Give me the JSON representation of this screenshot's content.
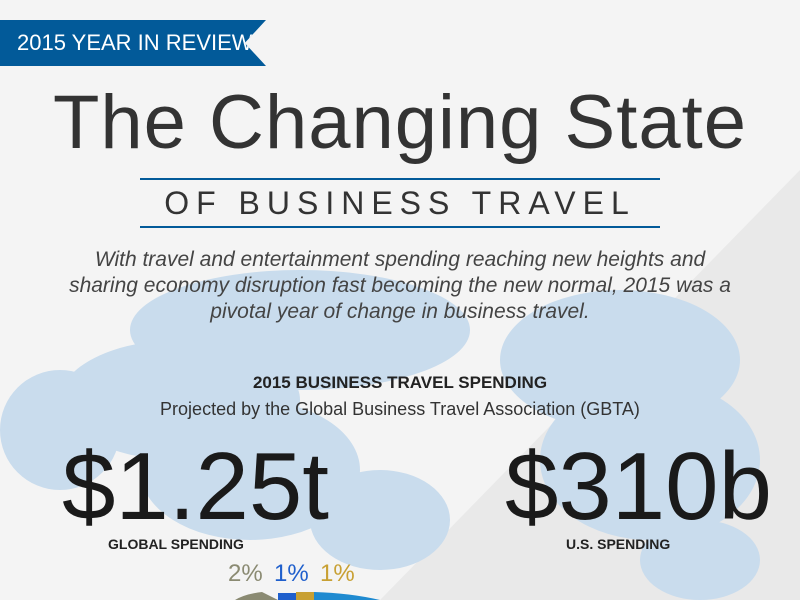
{
  "banner": "2015 YEAR IN REVIEW",
  "title": "The Changing State",
  "subtitle": "OF BUSINESS TRAVEL",
  "intro": "With travel and entertainment spending reaching new heights and sharing economy disruption fast becoming the new normal, 2015 was a pivotal year of change in business travel.",
  "section": {
    "heading": "2015 BUSINESS TRAVEL SPENDING",
    "source": "Projected by the Global Business Travel Association (GBTA)"
  },
  "stats": [
    {
      "value": "$1.25t",
      "label": "GLOBAL SPENDING"
    },
    {
      "value": "$310b",
      "label": "U.S. SPENDING"
    }
  ],
  "percentages": [
    {
      "text": "2%",
      "color": "#8a8a72"
    },
    {
      "text": "1%",
      "color": "#1f5fcc"
    },
    {
      "text": "1%",
      "color": "#c8a033"
    }
  ],
  "colors": {
    "brand": "#025a99",
    "map": "#c9dced",
    "arc": "#1f8ad0"
  }
}
